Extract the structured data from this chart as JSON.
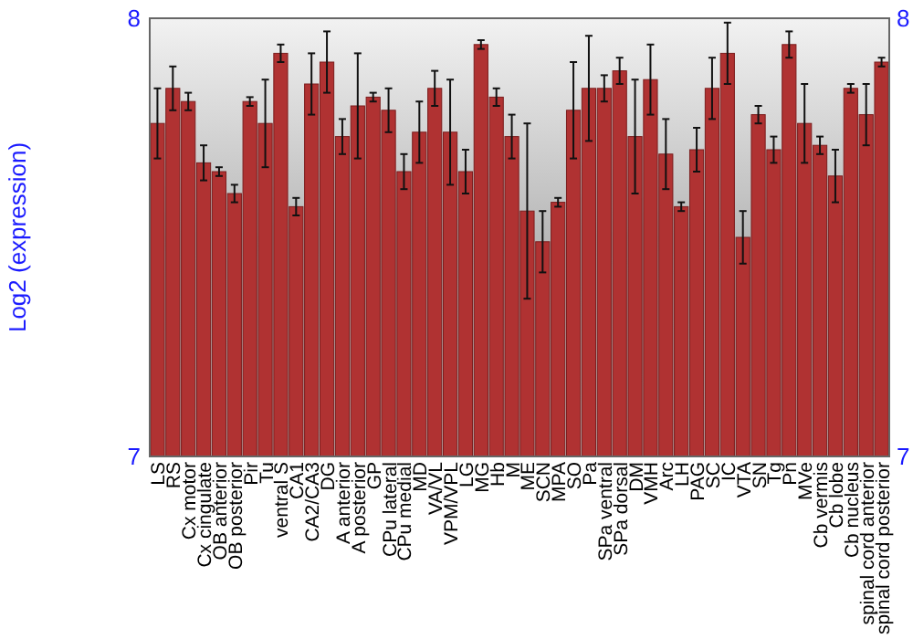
{
  "chart_data": {
    "type": "bar",
    "ylabel": "Log2 (expression)",
    "categories": [
      "LS",
      "RS",
      "Cx motor",
      "Cx cingulate",
      "OB anterior",
      "OB posterior",
      "Pir",
      "Tu",
      "ventral S",
      "CA1",
      "CA2/CA3",
      "DG",
      "A anterior",
      "A posterior",
      "GP",
      "CPu lateral",
      "CPu medial",
      "MD",
      "VA/VL",
      "VPM/VPL",
      "LG",
      "MG",
      "Hb",
      "M",
      "ME",
      "SCN",
      "MPA",
      "SO",
      "Pa",
      "SPa ventral",
      "SPa dorsal",
      "DM",
      "VMH",
      "Arc",
      "LH",
      "PAG",
      "SC",
      "IC",
      "VTA",
      "SN",
      "Tg",
      "Pn",
      "MVe",
      "Cb vermis",
      "Cb lobe",
      "Cb nucleus",
      "spinal cord anterior",
      "spinal cord posterior"
    ],
    "values": [
      7.76,
      7.84,
      7.81,
      7.67,
      7.65,
      7.6,
      7.81,
      7.76,
      7.92,
      7.57,
      7.85,
      7.9,
      7.73,
      7.8,
      7.82,
      7.79,
      7.65,
      7.74,
      7.84,
      7.74,
      7.65,
      7.94,
      7.82,
      7.73,
      7.56,
      7.49,
      7.58,
      7.79,
      7.84,
      7.84,
      7.88,
      7.73,
      7.86,
      7.69,
      7.57,
      7.7,
      7.84,
      7.92,
      7.5,
      7.78,
      7.7,
      7.94,
      7.76,
      7.71,
      7.64,
      7.84,
      7.78,
      7.9
    ],
    "errors": [
      0.08,
      0.05,
      0.02,
      0.04,
      0.01,
      0.02,
      0.01,
      0.1,
      0.02,
      0.02,
      0.07,
      0.07,
      0.04,
      0.12,
      0.01,
      0.05,
      0.04,
      0.07,
      0.04,
      0.12,
      0.05,
      0.01,
      0.02,
      0.05,
      0.2,
      0.07,
      0.01,
      0.11,
      0.12,
      0.03,
      0.03,
      0.13,
      0.08,
      0.08,
      0.01,
      0.05,
      0.07,
      0.07,
      0.06,
      0.02,
      0.03,
      0.03,
      0.09,
      0.02,
      0.06,
      0.01,
      0.07,
      0.01
    ],
    "color": "#b03232",
    "ylim": [
      7,
      8
    ],
    "yticks": [
      7,
      8
    ],
    "y2lim": [
      7,
      8
    ],
    "y2ticks": [
      7,
      8
    ]
  }
}
